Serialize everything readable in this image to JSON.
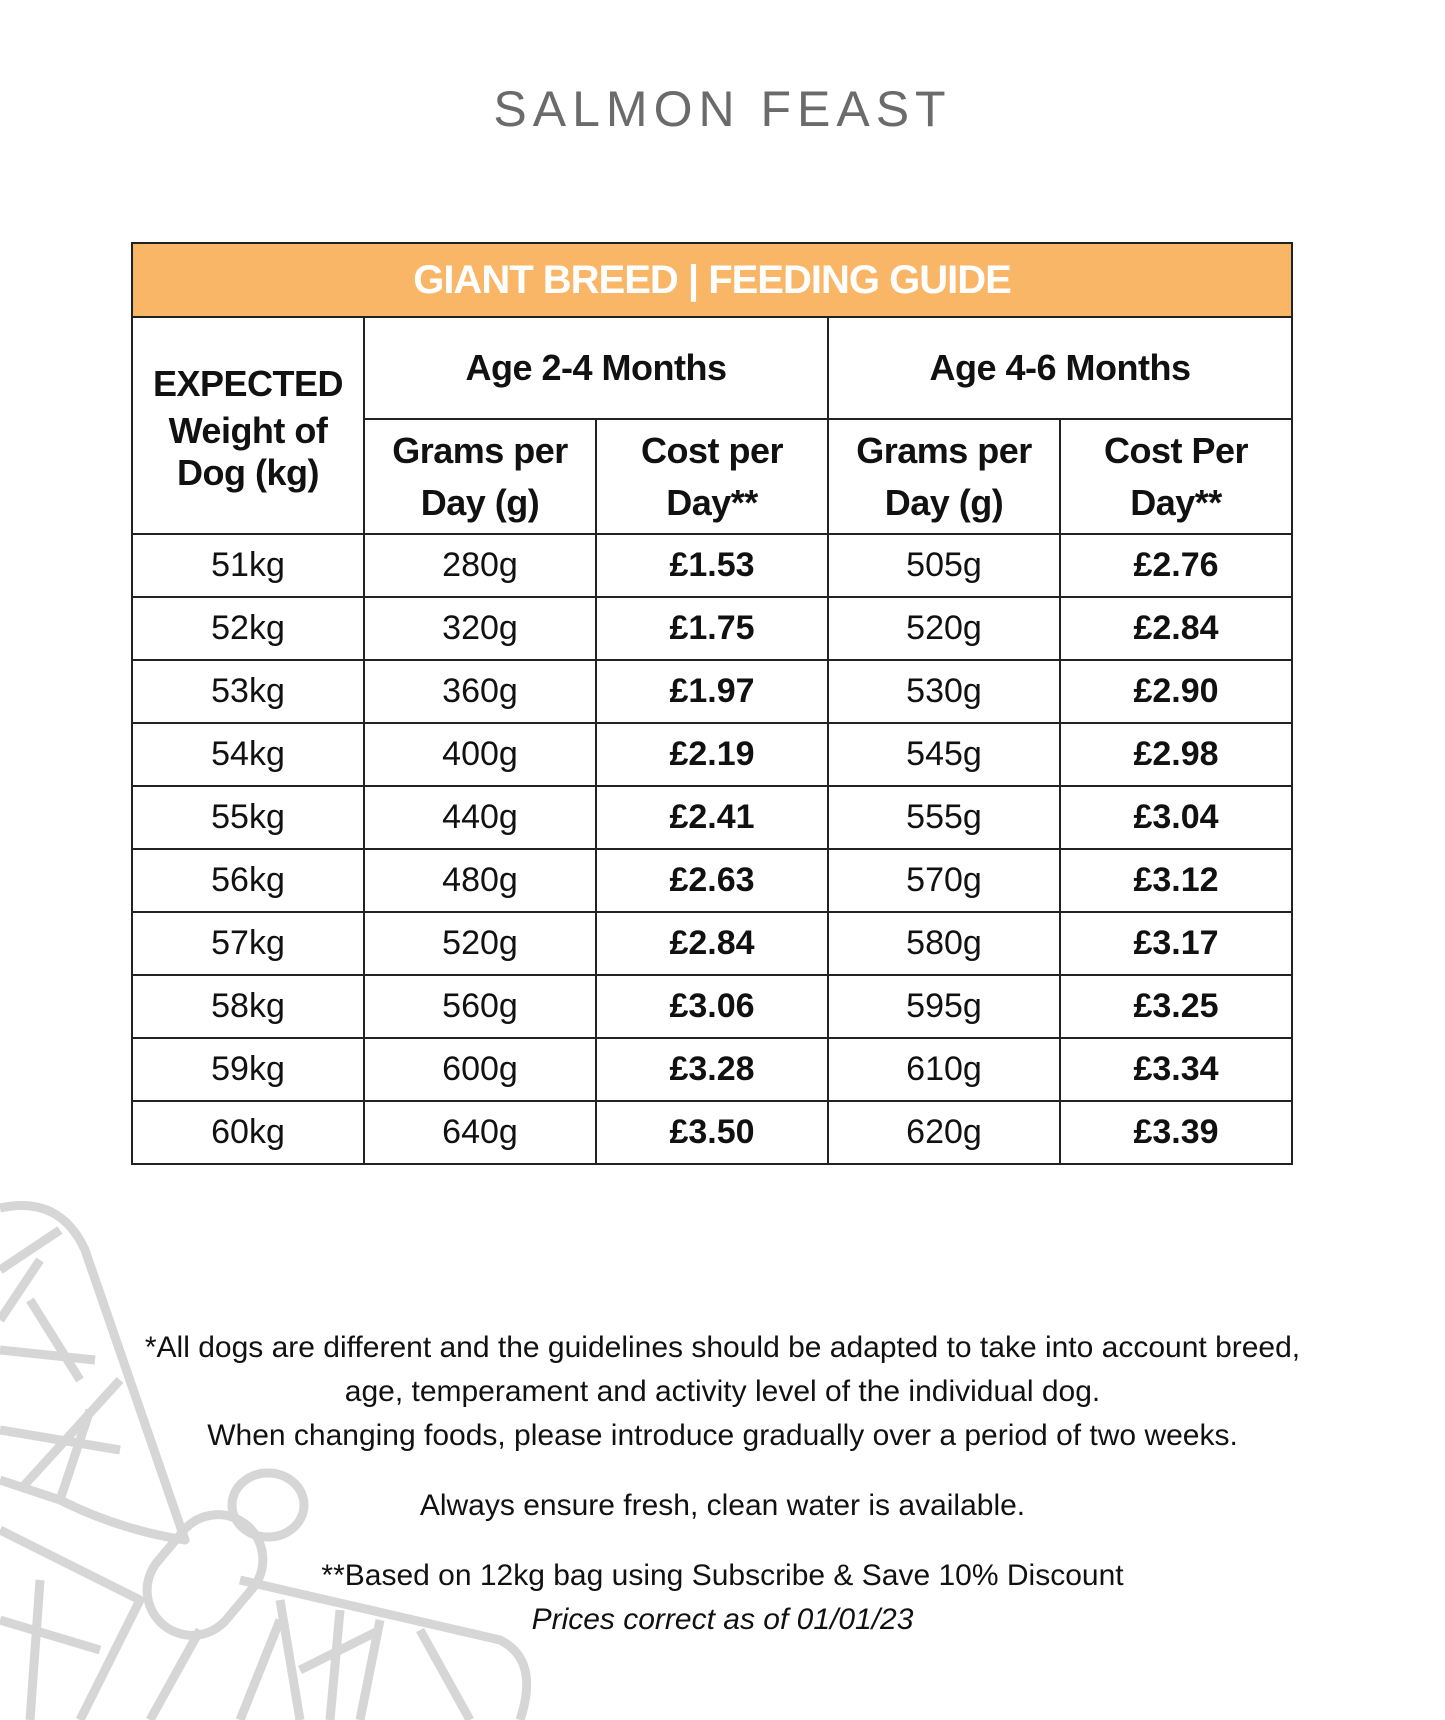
{
  "title": "SALMON FEAST",
  "table": {
    "banner": "GIANT BREED | FEEDING GUIDE",
    "weight_header": [
      "EXPECTED",
      "Weight of",
      "Dog (kg)"
    ],
    "age_groups": [
      "Age 2-4 Months",
      "Age 4-6 Months"
    ],
    "sub_headers": [
      [
        "Grams per",
        "Day (g)"
      ],
      [
        "Cost per",
        "Day**"
      ],
      [
        "Grams per",
        "Day (g)"
      ],
      [
        "Cost Per",
        "Day**"
      ]
    ],
    "rows": [
      [
        "51kg",
        "280g",
        "£1.53",
        "505g",
        "£2.76"
      ],
      [
        "52kg",
        "320g",
        "£1.75",
        "520g",
        "£2.84"
      ],
      [
        "53kg",
        "360g",
        "£1.97",
        "530g",
        "£2.90"
      ],
      [
        "54kg",
        "400g",
        "£2.19",
        "545g",
        "£2.98"
      ],
      [
        "55kg",
        "440g",
        "£2.41",
        "555g",
        "£3.04"
      ],
      [
        "56kg",
        "480g",
        "£2.63",
        "570g",
        "£3.12"
      ],
      [
        "57kg",
        "520g",
        "£2.84",
        "580g",
        "£3.17"
      ],
      [
        "58kg",
        "560g",
        "£3.06",
        "595g",
        "£3.25"
      ],
      [
        "59kg",
        "600g",
        "£3.28",
        "610g",
        "£3.34"
      ],
      [
        "60kg",
        "640g",
        "£3.50",
        "620g",
        "£3.39"
      ]
    ]
  },
  "notes": {
    "line1": "*All dogs are different and the guidelines should be adapted to take into account breed,",
    "line2": "age, temperament and activity level of the individual dog.",
    "line3": "When changing foods, please introduce gradually over a period of two weeks.",
    "water": "Always ensure fresh, clean water is available.",
    "based_on": "**Based on 12kg bag using Subscribe & Save 10% Discount",
    "prices": "Prices correct as of 01/01/23"
  },
  "colors": {
    "banner": "#f8b666",
    "watermark": "#d6d6d6",
    "title": "#6b6b6b"
  },
  "watermark_icon": "dragonfly-icon"
}
